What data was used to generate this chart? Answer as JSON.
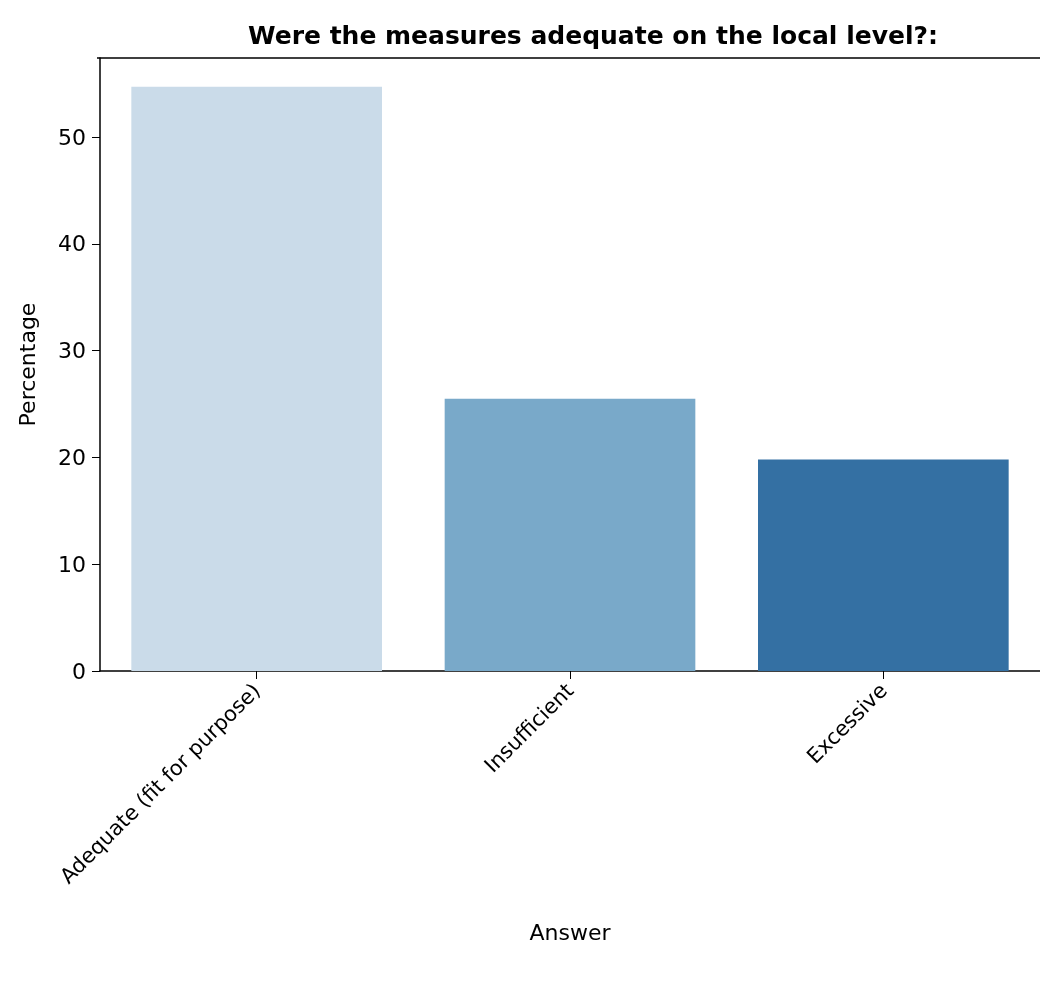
{
  "chart_data": {
    "type": "bar",
    "title": "Were the measures adequate on the local level?:",
    "xlabel": "Answer",
    "ylabel": "Percentage",
    "categories": [
      "Adequate (fit for purpose)",
      "Insufficient",
      "Excessive"
    ],
    "values": [
      54.7,
      25.5,
      19.8
    ],
    "colors": [
      "#cadbe9",
      "#79a9c9",
      "#3470a3"
    ],
    "ylim": [
      0,
      57.4
    ],
    "yticks": [
      0,
      10,
      20,
      30,
      40,
      50
    ],
    "grid": false
  }
}
